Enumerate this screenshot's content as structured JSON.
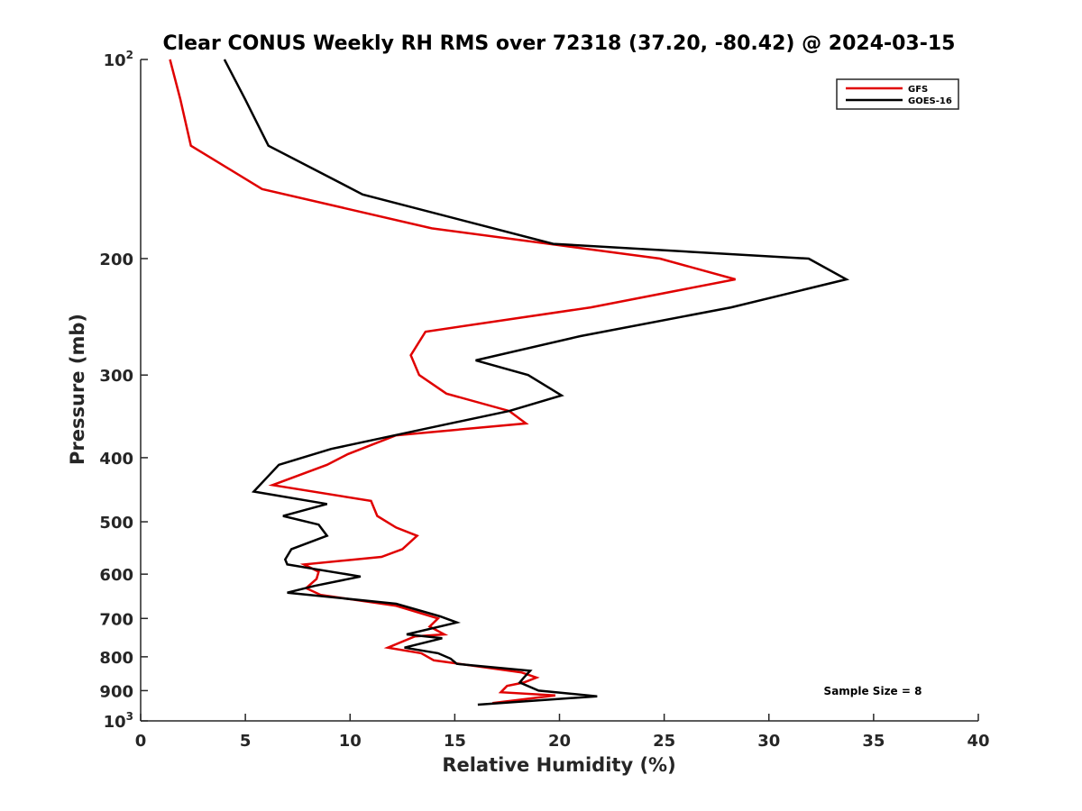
{
  "chart_data": {
    "type": "line",
    "title": "Clear CONUS Weekly RH RMS over 72318 (37.20, -80.42) @ 2024-03-15",
    "xlabel": "Relative Humidity (%)",
    "ylabel": "Pressure (mb)",
    "xlim": [
      0,
      40
    ],
    "ylim": [
      100,
      1000
    ],
    "y_scale": "log",
    "y_reversed": true,
    "x_ticks": [
      "0",
      "5",
      "10",
      "15",
      "20",
      "25",
      "30",
      "35",
      "40"
    ],
    "x_tick_values": [
      0,
      5,
      10,
      15,
      20,
      25,
      30,
      35,
      40
    ],
    "y_ticks": [
      {
        "value": 100,
        "base": "10",
        "exp": "2"
      },
      {
        "value": 200,
        "label": "200"
      },
      {
        "value": 300,
        "label": "300"
      },
      {
        "value": 400,
        "label": "400"
      },
      {
        "value": 500,
        "label": "500"
      },
      {
        "value": 600,
        "label": "600"
      },
      {
        "value": 700,
        "label": "700"
      },
      {
        "value": 800,
        "label": "800"
      },
      {
        "value": 900,
        "label": "900"
      },
      {
        "value": 1000,
        "base": "10",
        "exp": "3"
      }
    ],
    "legend_position": "top-right",
    "grid": false,
    "annotation": "Sample Size = 8",
    "series": [
      {
        "name": "GFS",
        "color": "#e00000",
        "points": [
          [
            1.4,
            100
          ],
          [
            1.9,
            115
          ],
          [
            2.4,
            135
          ],
          [
            5.8,
            157
          ],
          [
            13.9,
            180
          ],
          [
            24.8,
            200
          ],
          [
            28.4,
            215
          ],
          [
            21.5,
            237
          ],
          [
            13.6,
            258
          ],
          [
            12.9,
            280
          ],
          [
            13.3,
            300
          ],
          [
            14.6,
            320
          ],
          [
            17.6,
            340
          ],
          [
            18.4,
            355
          ],
          [
            12.2,
            370
          ],
          [
            9.9,
            395
          ],
          [
            8.9,
            410
          ],
          [
            6.3,
            440
          ],
          [
            11.0,
            465
          ],
          [
            11.3,
            490
          ],
          [
            12.2,
            510
          ],
          [
            13.2,
            525
          ],
          [
            12.5,
            550
          ],
          [
            11.5,
            565
          ],
          [
            7.8,
            580
          ],
          [
            8.5,
            595
          ],
          [
            8.4,
            610
          ],
          [
            7.9,
            630
          ],
          [
            8.6,
            645
          ],
          [
            12.2,
            670
          ],
          [
            14.2,
            700
          ],
          [
            13.8,
            720
          ],
          [
            14.5,
            740
          ],
          [
            13.1,
            745
          ],
          [
            11.8,
            775
          ],
          [
            13.4,
            790
          ],
          [
            14.0,
            810
          ],
          [
            18.2,
            845
          ],
          [
            18.9,
            860
          ],
          [
            18.3,
            875
          ],
          [
            17.5,
            885
          ],
          [
            17.2,
            905
          ],
          [
            19.8,
            915
          ],
          [
            16.8,
            940
          ]
        ]
      },
      {
        "name": "GOES-16",
        "color": "#000000",
        "points": [
          [
            4.0,
            100
          ],
          [
            5.0,
            115
          ],
          [
            6.1,
            135
          ],
          [
            10.6,
            160
          ],
          [
            19.7,
            190
          ],
          [
            31.9,
            200
          ],
          [
            33.7,
            215
          ],
          [
            28.2,
            237
          ],
          [
            21.0,
            262
          ],
          [
            16.0,
            285
          ],
          [
            18.5,
            300
          ],
          [
            20.1,
            322
          ],
          [
            17.6,
            340
          ],
          [
            13.9,
            360
          ],
          [
            9.1,
            388
          ],
          [
            6.6,
            410
          ],
          [
            5.4,
            450
          ],
          [
            8.9,
            470
          ],
          [
            6.8,
            490
          ],
          [
            8.5,
            505
          ],
          [
            8.9,
            525
          ],
          [
            7.2,
            550
          ],
          [
            6.9,
            570
          ],
          [
            7.0,
            580
          ],
          [
            8.4,
            590
          ],
          [
            10.5,
            605
          ],
          [
            8.3,
            625
          ],
          [
            7.0,
            640
          ],
          [
            12.2,
            665
          ],
          [
            14.3,
            695
          ],
          [
            15.1,
            710
          ],
          [
            12.7,
            740
          ],
          [
            14.4,
            750
          ],
          [
            12.6,
            775
          ],
          [
            14.2,
            790
          ],
          [
            14.8,
            805
          ],
          [
            15.1,
            820
          ],
          [
            18.6,
            840
          ],
          [
            18.3,
            860
          ],
          [
            18.1,
            875
          ],
          [
            19.0,
            900
          ],
          [
            21.8,
            918
          ],
          [
            16.1,
            945
          ]
        ]
      }
    ]
  }
}
